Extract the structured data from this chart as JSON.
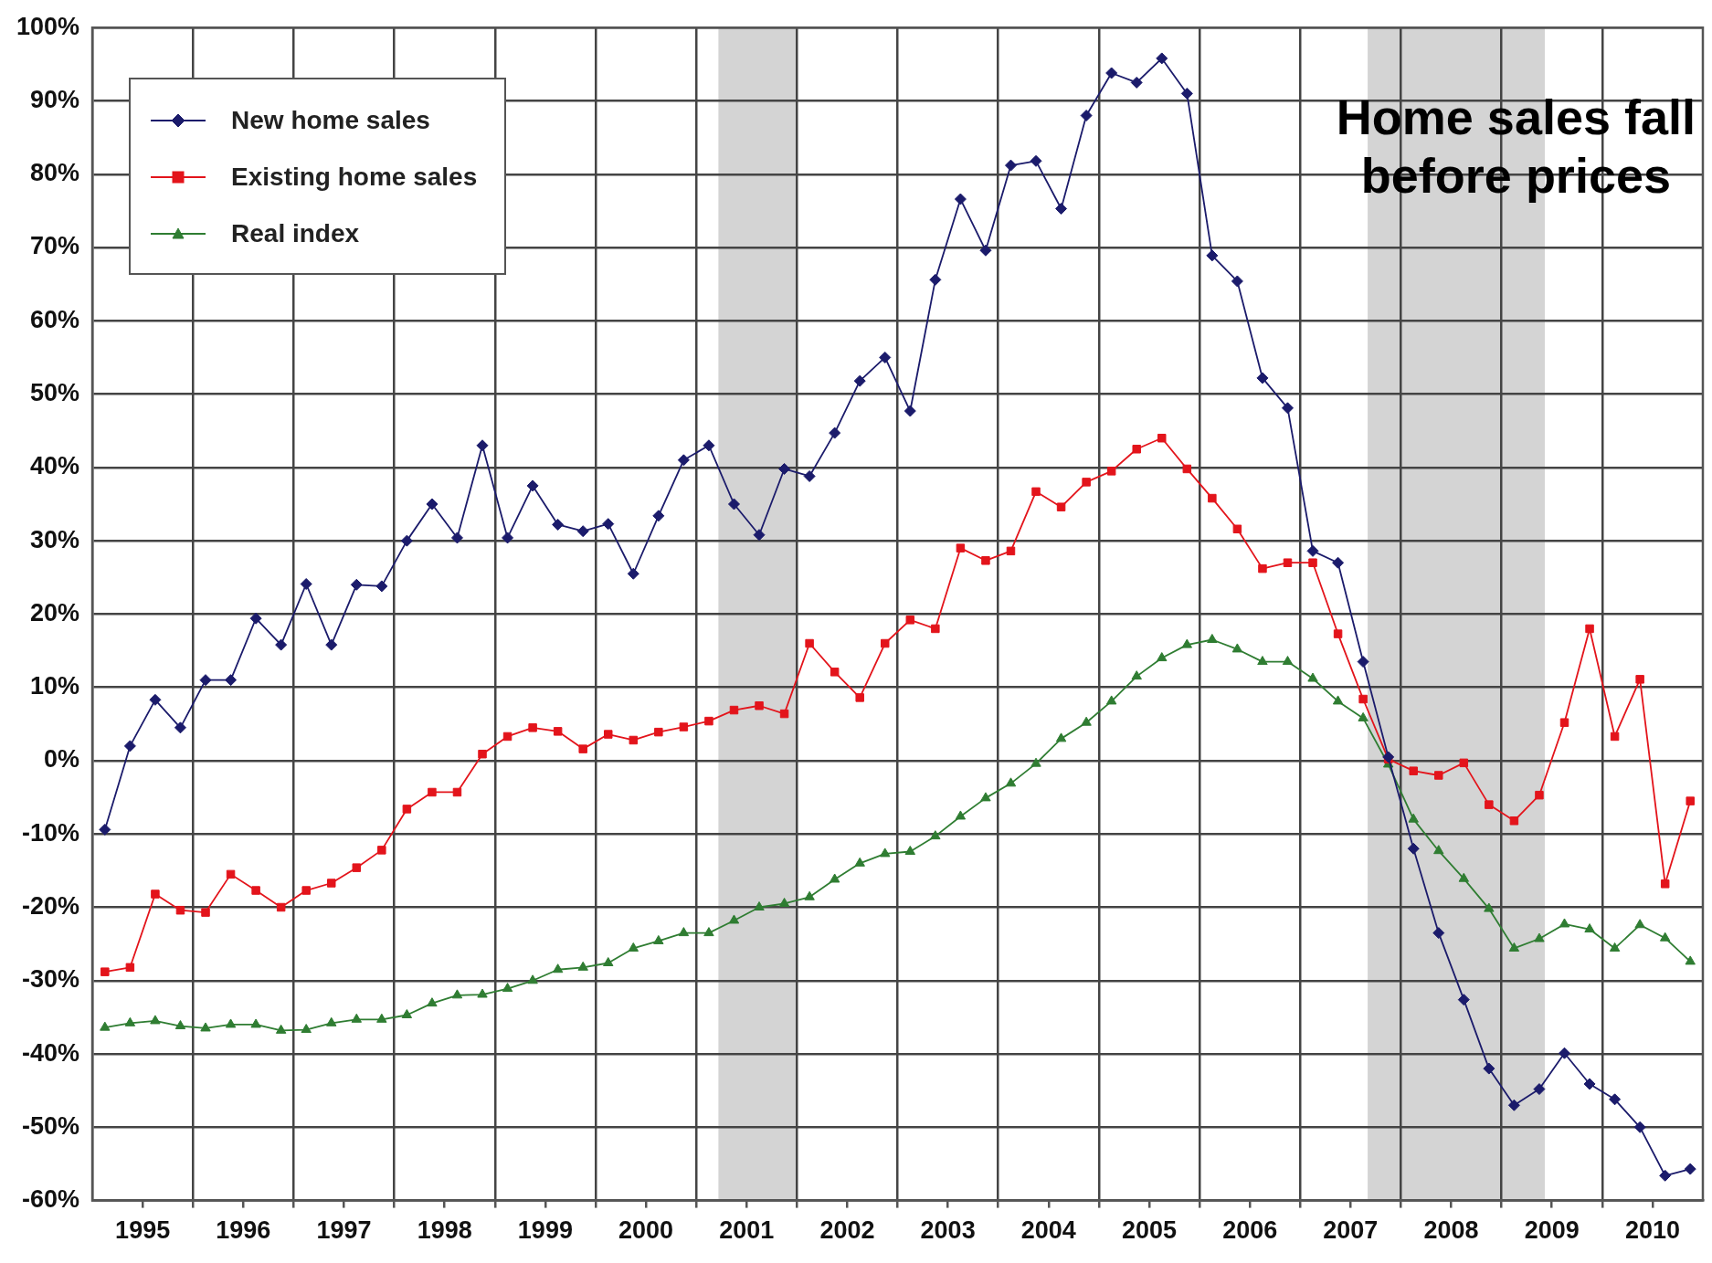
{
  "chart_data": {
    "type": "line",
    "x": [
      1995.125,
      1995.375,
      1995.625,
      1995.875,
      1996.125,
      1996.375,
      1996.625,
      1996.875,
      1997.125,
      1997.375,
      1997.625,
      1997.875,
      1998.125,
      1998.375,
      1998.625,
      1998.875,
      1999.125,
      1999.375,
      1999.625,
      1999.875,
      2000.125,
      2000.375,
      2000.625,
      2000.875,
      2001.125,
      2001.375,
      2001.625,
      2001.875,
      2002.125,
      2002.375,
      2002.625,
      2002.875,
      2003.125,
      2003.375,
      2003.625,
      2003.875,
      2004.125,
      2004.375,
      2004.625,
      2004.875,
      2005.125,
      2005.375,
      2005.625,
      2005.875,
      2006.125,
      2006.375,
      2006.625,
      2006.875,
      2007.125,
      2007.375,
      2007.625,
      2007.875,
      2008.125,
      2008.375,
      2008.625,
      2008.875,
      2009.125,
      2009.375,
      2009.625,
      2009.875,
      2010.125,
      2010.375,
      2010.625,
      2010.875
    ],
    "series": [
      {
        "name": "New home sales",
        "color": "#1b1b6b",
        "marker": "diamond",
        "values": [
          -9.4,
          2,
          8.3,
          4.5,
          11,
          11,
          19.4,
          15.8,
          24.1,
          15.8,
          24,
          23.8,
          30,
          35,
          30.4,
          43,
          30.4,
          37.5,
          32.2,
          31.3,
          32.3,
          25.5,
          33.4,
          41,
          43,
          35,
          30.8,
          39.8,
          38.8,
          44.7,
          51.8,
          55,
          47.7,
          65.6,
          76.6,
          69.6,
          81.2,
          81.8,
          75.3,
          88,
          93.8,
          92.5,
          95.8,
          91,
          68.9,
          65.4,
          52.2,
          48.1,
          28.6,
          27,
          13.5,
          0.5,
          -12,
          -23.5,
          -32.6,
          -42,
          -47,
          -44.8,
          -39.9,
          -44.1,
          -46.2,
          -50,
          -56.6,
          -55.7
        ]
      },
      {
        "name": "Existing home sales",
        "color": "#e3141b",
        "marker": "square",
        "values": [
          -28.8,
          -28.2,
          -18.2,
          -20.4,
          -20.7,
          -15.5,
          -17.7,
          -20,
          -17.7,
          -16.7,
          -14.6,
          -12.2,
          -6.6,
          -4.3,
          -4.3,
          0.9,
          3.3,
          4.5,
          4,
          1.6,
          3.6,
          2.8,
          3.9,
          4.6,
          5.4,
          6.9,
          7.5,
          6.4,
          16,
          12.1,
          8.6,
          16,
          19.2,
          18,
          29,
          27.3,
          28.6,
          36.7,
          34.6,
          38,
          39.5,
          42.5,
          44,
          39.8,
          35.8,
          31.6,
          26.2,
          27,
          27,
          17.3,
          8.4,
          0.2,
          -1.4,
          -2,
          -0.3,
          -6,
          -8.2,
          -4.7,
          5.2,
          18,
          3.3,
          11.1,
          -16.8,
          -5.5
        ]
      },
      {
        "name": "Real index",
        "color": "#2f7d32",
        "marker": "triangle",
        "values": [
          -36.4,
          -35.8,
          -35.5,
          -36.2,
          -36.5,
          -36,
          -36,
          -36.8,
          -36.7,
          -35.8,
          -35.3,
          -35.3,
          -34.7,
          -33.1,
          -32,
          -31.9,
          -31.1,
          -30,
          -28.5,
          -28.2,
          -27.6,
          -25.6,
          -24.6,
          -23.5,
          -23.5,
          -21.8,
          -20,
          -19.5,
          -18.6,
          -16.2,
          -14,
          -12.7,
          -12.4,
          -10.3,
          -7.6,
          -5.1,
          -3.1,
          -0.4,
          3,
          5.2,
          8.1,
          11.5,
          14,
          15.8,
          16.5,
          15.2,
          13.5,
          13.5,
          11.2,
          8.1,
          5.8,
          -0.5,
          -8,
          -12.3,
          -16.1,
          -20.2,
          -25.6,
          -24.3,
          -22.3,
          -23,
          -25.6,
          -22.4,
          -24.2,
          -27.4
        ]
      }
    ],
    "xlim": [
      1995,
      2011
    ],
    "xticks": [
      {
        "value": 1995.5,
        "label": "1995"
      },
      {
        "value": 1996,
        "label": null
      },
      {
        "value": 1996.5,
        "label": "1996"
      },
      {
        "value": 1997,
        "label": null
      },
      {
        "value": 1997.5,
        "label": "1997"
      },
      {
        "value": 1998,
        "label": null
      },
      {
        "value": 1998.5,
        "label": "1998"
      },
      {
        "value": 1999,
        "label": null
      },
      {
        "value": 1999.5,
        "label": "1999"
      },
      {
        "value": 2000,
        "label": null
      },
      {
        "value": 2000.5,
        "label": "2000"
      },
      {
        "value": 2001,
        "label": null
      },
      {
        "value": 2001.5,
        "label": "2001"
      },
      {
        "value": 2002,
        "label": null
      },
      {
        "value": 2002.5,
        "label": "2002"
      },
      {
        "value": 2003,
        "label": null
      },
      {
        "value": 2003.5,
        "label": "2003"
      },
      {
        "value": 2004,
        "label": null
      },
      {
        "value": 2004.5,
        "label": "2004"
      },
      {
        "value": 2005,
        "label": null
      },
      {
        "value": 2005.5,
        "label": "2005"
      },
      {
        "value": 2006,
        "label": null
      },
      {
        "value": 2006.5,
        "label": "2006"
      },
      {
        "value": 2007,
        "label": null
      },
      {
        "value": 2007.5,
        "label": "2007"
      },
      {
        "value": 2008,
        "label": null
      },
      {
        "value": 2008.5,
        "label": "2008"
      },
      {
        "value": 2009,
        "label": null
      },
      {
        "value": 2009.5,
        "label": "2009"
      },
      {
        "value": 2010,
        "label": null
      },
      {
        "value": 2010.5,
        "label": "2010"
      }
    ],
    "ylim": [
      -60,
      100
    ],
    "yticks": [
      {
        "value": -60,
        "label": "-60%"
      },
      {
        "value": -50,
        "label": "-50%"
      },
      {
        "value": -40,
        "label": "-40%"
      },
      {
        "value": -30,
        "label": "-30%"
      },
      {
        "value": -20,
        "label": "-20%"
      },
      {
        "value": -10,
        "label": "-10%"
      },
      {
        "value": 0,
        "label": "0%"
      },
      {
        "value": 10,
        "label": "10%"
      },
      {
        "value": 20,
        "label": "20%"
      },
      {
        "value": 30,
        "label": "30%"
      },
      {
        "value": 40,
        "label": "40%"
      },
      {
        "value": 50,
        "label": "50%"
      },
      {
        "value": 60,
        "label": "60%"
      },
      {
        "value": 70,
        "label": "70%"
      },
      {
        "value": 80,
        "label": "80%"
      },
      {
        "value": 90,
        "label": "90%"
      },
      {
        "value": 100,
        "label": "100%"
      }
    ],
    "bands": [
      {
        "axis": "x",
        "from": 2001.22,
        "to": 2002,
        "color": "#d4d4d4"
      },
      {
        "axis": "x",
        "from": 2007.67,
        "to": 2009.43,
        "color": "#d4d4d4"
      }
    ],
    "annotations": [
      "Home sales fall\nbefore prices"
    ],
    "grid": true,
    "legend": "top left",
    "line_style": "solid"
  }
}
